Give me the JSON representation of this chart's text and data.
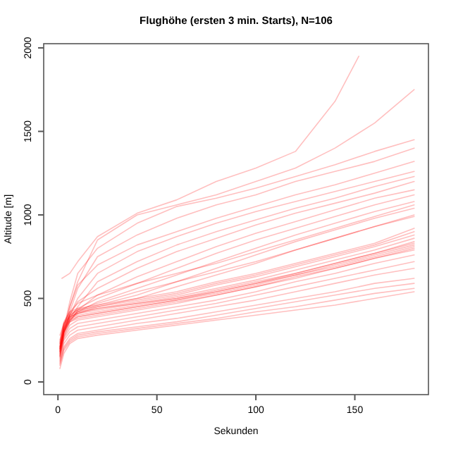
{
  "chart_data": {
    "type": "line",
    "title": "Flughöhe (ersten 3 min. Starts), N=106",
    "xlabel": "Sekunden",
    "ylabel": "Altitude [m]",
    "xlim": [
      -7.2,
      187.2
    ],
    "ylim": [
      -76,
      2025
    ],
    "xticks": [
      0,
      50,
      100,
      150
    ],
    "yticks": [
      0,
      500,
      1000,
      1500,
      2000
    ],
    "grid": false,
    "marker": "none",
    "line_style": "solid",
    "x": [
      1,
      3,
      6,
      10,
      20,
      40,
      60,
      80,
      100,
      120,
      140,
      160,
      180
    ],
    "series": [
      {
        "color": "#ff0000",
        "x": [
          2,
          6,
          10,
          20,
          40,
          60,
          80,
          100,
          120,
          140,
          152
        ],
        "values": [
          620,
          650,
          720,
          870,
          1010,
          1090,
          1200,
          1280,
          1380,
          1680,
          1950
        ]
      },
      {
        "color": "#ff0000",
        "values": [
          150,
          300,
          450,
          600,
          850,
          1000,
          1060,
          1120,
          1200,
          1280,
          1400,
          1550,
          1750
        ]
      },
      {
        "color": "#ff0000",
        "values": [
          200,
          320,
          480,
          650,
          800,
          950,
          1050,
          1100,
          1160,
          1230,
          1300,
          1380,
          1450
        ]
      },
      {
        "color": "#ff0000",
        "values": [
          180,
          280,
          420,
          560,
          750,
          880,
          980,
          1060,
          1120,
          1200,
          1260,
          1320,
          1400
        ]
      },
      {
        "color": "#ff0000",
        "values": [
          220,
          330,
          450,
          580,
          700,
          820,
          900,
          980,
          1050,
          1120,
          1180,
          1250,
          1320
        ]
      },
      {
        "color": "#ff0000",
        "values": [
          200,
          300,
          400,
          500,
          650,
          780,
          870,
          950,
          1020,
          1080,
          1140,
          1200,
          1260
        ]
      },
      {
        "color": "#ff0000",
        "values": [
          170,
          290,
          380,
          450,
          600,
          720,
          820,
          900,
          970,
          1040,
          1100,
          1170,
          1230
        ]
      },
      {
        "color": "#ff0000",
        "values": [
          190,
          310,
          400,
          480,
          560,
          680,
          780,
          860,
          940,
          1010,
          1070,
          1130,
          1200
        ]
      },
      {
        "color": "#ff0000",
        "values": [
          160,
          270,
          360,
          430,
          520,
          630,
          720,
          810,
          890,
          960,
          1030,
          1100,
          1150
        ]
      },
      {
        "color": "#ff0000",
        "values": [
          210,
          320,
          390,
          440,
          500,
          590,
          680,
          770,
          850,
          920,
          990,
          1060,
          1120
        ]
      },
      {
        "color": "#ff0000",
        "values": [
          180,
          300,
          370,
          420,
          480,
          560,
          640,
          720,
          800,
          880,
          950,
          1020,
          1080
        ]
      },
      {
        "color": "#ff0000",
        "values": [
          200,
          310,
          380,
          420,
          460,
          520,
          600,
          680,
          760,
          840,
          910,
          980,
          1040
        ]
      },
      {
        "color": "#ff0000",
        "values": [
          190,
          300,
          370,
          410,
          450,
          500,
          570,
          640,
          710,
          790,
          860,
          930,
          1000
        ]
      },
      {
        "color": "#ff0000",
        "values": [
          230,
          340,
          400,
          420,
          440,
          480,
          520,
          580,
          630,
          690,
          750,
          810,
          880
        ]
      },
      {
        "color": "#ff0000",
        "values": [
          210,
          330,
          390,
          410,
          430,
          470,
          510,
          560,
          610,
          670,
          730,
          790,
          860
        ]
      },
      {
        "color": "#ff0000",
        "values": [
          180,
          310,
          380,
          400,
          420,
          460,
          500,
          550,
          600,
          650,
          710,
          770,
          840
        ]
      },
      {
        "color": "#ff0000",
        "values": [
          250,
          350,
          410,
          430,
          450,
          490,
          530,
          590,
          640,
          700,
          760,
          820,
          900
        ]
      },
      {
        "color": "#ff0000",
        "values": [
          170,
          290,
          360,
          390,
          410,
          450,
          490,
          540,
          590,
          640,
          700,
          760,
          820
        ]
      },
      {
        "color": "#ff0000",
        "values": [
          200,
          320,
          370,
          390,
          410,
          450,
          490,
          530,
          580,
          640,
          690,
          750,
          810
        ]
      },
      {
        "color": "#ff0000",
        "values": [
          280,
          350,
          390,
          410,
          440,
          470,
          500,
          540,
          590,
          650,
          710,
          770,
          830
        ]
      },
      {
        "color": "#ff0000",
        "values": [
          160,
          270,
          340,
          370,
          390,
          430,
          470,
          520,
          570,
          620,
          680,
          740,
          800
        ]
      },
      {
        "color": "#ff0000",
        "values": [
          190,
          300,
          360,
          380,
          400,
          440,
          480,
          520,
          570,
          630,
          680,
          740,
          790
        ]
      },
      {
        "color": "#ff0000",
        "values": [
          150,
          260,
          320,
          350,
          370,
          410,
          450,
          490,
          540,
          600,
          650,
          710,
          760
        ]
      },
      {
        "color": "#ff0000",
        "values": [
          240,
          360,
          420,
          440,
          460,
          500,
          540,
          600,
          650,
          710,
          770,
          830,
          920
        ]
      },
      {
        "color": "#ff0000",
        "values": [
          140,
          250,
          300,
          330,
          350,
          390,
          430,
          470,
          520,
          570,
          620,
          670,
          720
        ]
      },
      {
        "color": "#ff0000",
        "values": [
          130,
          230,
          280,
          310,
          330,
          370,
          410,
          450,
          490,
          540,
          590,
          640,
          680
        ]
      },
      {
        "color": "#ff0000",
        "values": [
          120,
          210,
          260,
          290,
          310,
          350,
          380,
          420,
          460,
          500,
          540,
          590,
          620
        ]
      },
      {
        "color": "#ff0000",
        "values": [
          110,
          200,
          250,
          280,
          300,
          330,
          360,
          400,
          440,
          480,
          520,
          560,
          590
        ]
      },
      {
        "color": "#ff0000",
        "values": [
          100,
          190,
          240,
          270,
          290,
          320,
          350,
          380,
          420,
          450,
          490,
          530,
          560
        ]
      },
      {
        "color": "#ff0000",
        "values": [
          80,
          170,
          230,
          260,
          280,
          310,
          340,
          370,
          400,
          430,
          460,
          500,
          540
        ]
      },
      {
        "color": "#ff0000",
        "values": [
          210,
          330,
          400,
          430,
          470,
          540,
          600,
          660,
          720,
          790,
          860,
          930,
          990
        ]
      },
      {
        "color": "#ff0000",
        "values": [
          230,
          350,
          420,
          470,
          520,
          590,
          650,
          710,
          780,
          850,
          920,
          990,
          1060
        ]
      }
    ]
  }
}
